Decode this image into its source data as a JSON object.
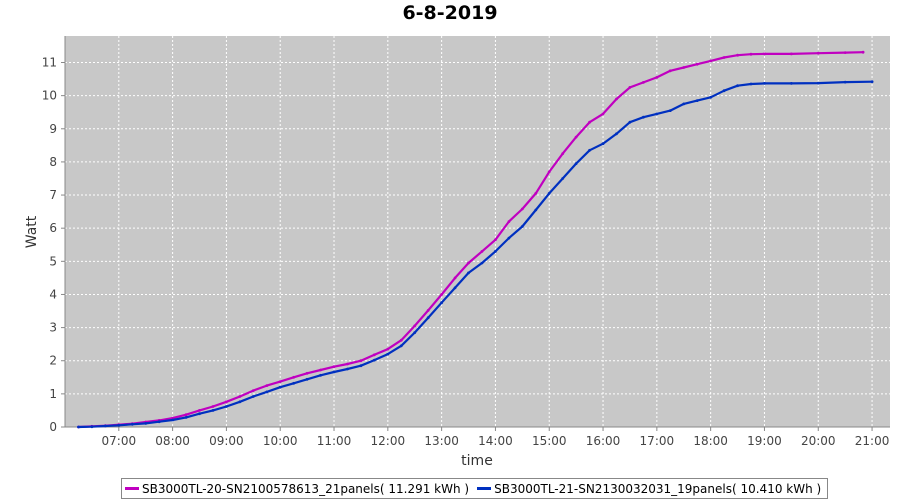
{
  "chart_data": {
    "type": "line",
    "title": "6-8-2019",
    "xlabel": "time",
    "ylabel": "Watt",
    "xlim": [
      "06:00",
      "21:20"
    ],
    "ylim": [
      0,
      11.8
    ],
    "xticks": [
      "07:00",
      "08:00",
      "09:00",
      "10:00",
      "11:00",
      "12:00",
      "13:00",
      "14:00",
      "15:00",
      "16:00",
      "17:00",
      "18:00",
      "19:00",
      "20:00",
      "21:00"
    ],
    "yticks": [
      0,
      1,
      2,
      3,
      4,
      5,
      6,
      7,
      8,
      9,
      10,
      11
    ],
    "grid": true,
    "legend_position": "bottom",
    "background": "#c8c8c8",
    "series": [
      {
        "name": "SB3000TL-20-SN2100578613_21panels( 11.291 kWh )",
        "color": "#c000c0",
        "x": [
          "06:15",
          "06:30",
          "06:45",
          "07:00",
          "07:15",
          "07:30",
          "07:45",
          "08:00",
          "08:15",
          "08:30",
          "08:45",
          "09:00",
          "09:15",
          "09:30",
          "09:45",
          "10:00",
          "10:15",
          "10:30",
          "10:45",
          "11:00",
          "11:15",
          "11:30",
          "11:45",
          "12:00",
          "12:15",
          "12:30",
          "12:45",
          "13:00",
          "13:15",
          "13:30",
          "13:45",
          "14:00",
          "14:15",
          "14:30",
          "14:45",
          "15:00",
          "15:15",
          "15:30",
          "15:45",
          "16:00",
          "16:15",
          "16:30",
          "16:45",
          "17:00",
          "17:15",
          "17:30",
          "17:45",
          "18:00",
          "18:15",
          "18:30",
          "18:45",
          "19:00",
          "19:30",
          "20:00",
          "20:30",
          "20:50"
        ],
        "values": [
          0.0,
          0.02,
          0.04,
          0.07,
          0.1,
          0.15,
          0.2,
          0.27,
          0.37,
          0.5,
          0.62,
          0.76,
          0.92,
          1.1,
          1.25,
          1.37,
          1.5,
          1.62,
          1.72,
          1.82,
          1.9,
          2.0,
          2.18,
          2.35,
          2.62,
          3.05,
          3.52,
          4.0,
          4.5,
          4.95,
          5.3,
          5.65,
          6.2,
          6.58,
          7.05,
          7.7,
          8.25,
          8.75,
          9.2,
          9.45,
          9.9,
          10.25,
          10.4,
          10.55,
          10.75,
          10.85,
          10.95,
          11.05,
          11.15,
          11.22,
          11.25,
          11.26,
          11.26,
          11.28,
          11.3,
          11.31
        ]
      },
      {
        "name": "SB3000TL-21-SN2130032031_19panels( 10.410 kWh )",
        "color": "#0030c0",
        "x": [
          "06:15",
          "06:30",
          "06:45",
          "07:00",
          "07:15",
          "07:30",
          "07:45",
          "08:00",
          "08:15",
          "08:30",
          "08:45",
          "09:00",
          "09:15",
          "09:30",
          "09:45",
          "10:00",
          "10:15",
          "10:30",
          "10:45",
          "11:00",
          "11:15",
          "11:30",
          "11:45",
          "12:00",
          "12:15",
          "12:30",
          "12:45",
          "13:00",
          "13:15",
          "13:30",
          "13:45",
          "14:00",
          "14:15",
          "14:30",
          "14:45",
          "15:00",
          "15:15",
          "15:30",
          "15:45",
          "16:00",
          "16:15",
          "16:30",
          "16:45",
          "17:00",
          "17:15",
          "17:30",
          "17:45",
          "18:00",
          "18:15",
          "18:30",
          "18:45",
          "19:00",
          "19:30",
          "20:00",
          "20:30",
          "21:00"
        ],
        "values": [
          0.0,
          0.01,
          0.03,
          0.05,
          0.08,
          0.11,
          0.16,
          0.21,
          0.29,
          0.4,
          0.5,
          0.62,
          0.76,
          0.92,
          1.06,
          1.2,
          1.32,
          1.44,
          1.56,
          1.66,
          1.75,
          1.85,
          2.02,
          2.2,
          2.45,
          2.85,
          3.3,
          3.75,
          4.2,
          4.65,
          4.95,
          5.3,
          5.7,
          6.05,
          6.55,
          7.05,
          7.5,
          7.95,
          8.35,
          8.55,
          8.85,
          9.2,
          9.35,
          9.45,
          9.55,
          9.75,
          9.85,
          9.95,
          10.15,
          10.3,
          10.35,
          10.37,
          10.37,
          10.38,
          10.41,
          10.42
        ]
      }
    ]
  }
}
